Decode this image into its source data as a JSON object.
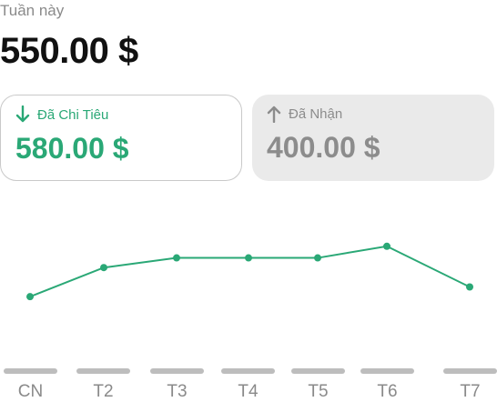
{
  "header": {
    "week_label": "Tuần này",
    "balance": "550.00 $"
  },
  "cards": {
    "spent": {
      "icon": "arrow-down-icon",
      "label": "Đã Chi Tiêu",
      "amount": "580.00 $",
      "color": "#2aa876"
    },
    "received": {
      "icon": "arrow-up-icon",
      "label": "Đã Nhận",
      "amount": "400.00 $",
      "color": "#8c8c8c"
    }
  },
  "chart_data": {
    "type": "line",
    "categories": [
      "CN",
      "T2",
      "T3",
      "T4",
      "T5",
      "T6",
      "T7"
    ],
    "series": [
      {
        "values": [
          45,
          60,
          65,
          65,
          65,
          71,
          50
        ]
      }
    ],
    "ylim": [
      0,
      100
    ],
    "grid": false,
    "line_color": "#2aa876"
  }
}
